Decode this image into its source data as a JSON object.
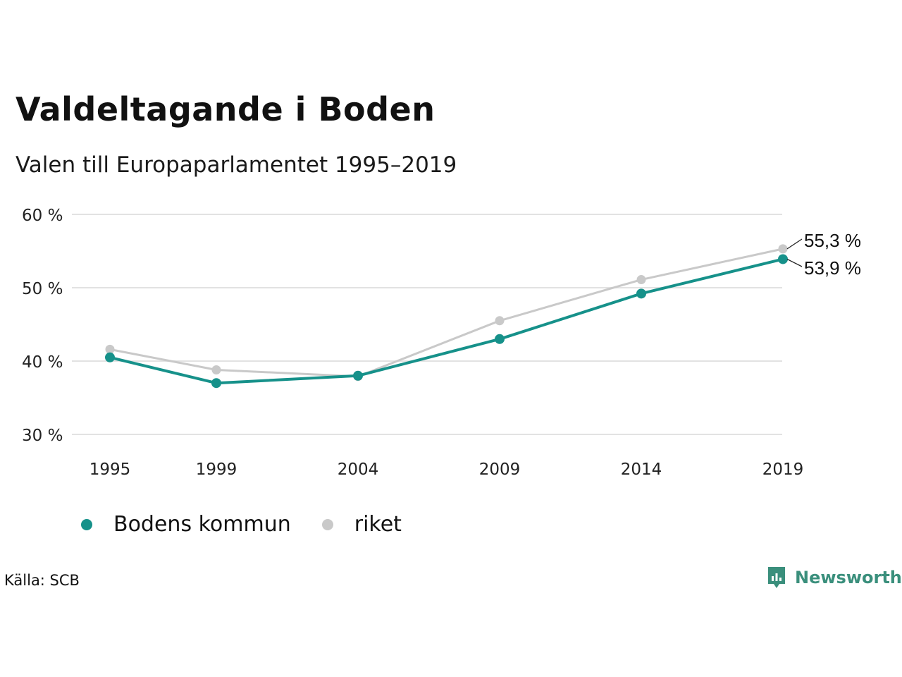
{
  "title": "Valdeltagande i Boden",
  "subtitle": "Valen till Europaparlamentet 1995–2019",
  "source": "Källa: SCB",
  "brand": {
    "name": "Newsworthy",
    "color": "#3a8f7c",
    "icon": "newsworthy-logo-icon"
  },
  "chart_data": {
    "type": "line",
    "categories": [
      "1995",
      "1999",
      "2004",
      "2009",
      "2014",
      "2019"
    ],
    "x": [
      1995,
      1999,
      2004,
      2009,
      2014,
      2019
    ],
    "ylim": [
      30,
      60
    ],
    "yticks": [
      30,
      40,
      50,
      60
    ],
    "ytick_labels": [
      "30 %",
      "40 %",
      "50 %",
      "60 %"
    ],
    "grid": true,
    "legend_position": "bottom-left",
    "series": [
      {
        "name": "Bodens kommun",
        "color": "#16918a",
        "values": [
          40.5,
          37.0,
          38.0,
          43.0,
          49.2,
          53.9
        ]
      },
      {
        "name": "riket",
        "color": "#c9c9c9",
        "values": [
          41.6,
          38.8,
          37.9,
          45.5,
          51.1,
          55.3
        ]
      }
    ],
    "annotations": [
      {
        "series": "riket",
        "label": "55,3 %"
      },
      {
        "series": "Bodens kommun",
        "label": "53,9 %"
      }
    ]
  }
}
